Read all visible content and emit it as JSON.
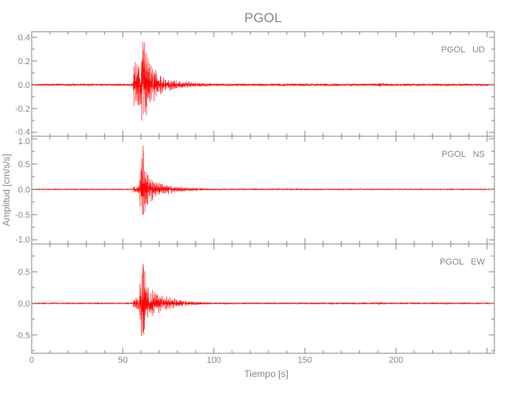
{
  "chart_data": {
    "type": "line",
    "title": "PGOL",
    "xlabel": "Tiempo [s]",
    "ylabel": "Amplitud [cm/s/s]",
    "xlim": [
      0,
      254
    ],
    "x_ticks": [
      0,
      50,
      100,
      150,
      200
    ],
    "x_tick_labels": [
      "0",
      "50",
      "100",
      "150",
      "200"
    ],
    "grid": false,
    "line_color": "#ff0000",
    "axis_color": "#888888",
    "panels": [
      {
        "label": "PGOL   UD",
        "ylim": [
          -0.433,
          0.447
        ],
        "y_ticks": [
          -0.4,
          -0.2,
          0.0,
          0.2,
          0.4
        ],
        "y_tick_labels": [
          "-0.4",
          "-0.2",
          "0.0",
          "0.2",
          "0.4"
        ],
        "y_minor_step": 0.1,
        "noise": 0.01,
        "envelope": [
          [
            0,
            0.01
          ],
          [
            55.5,
            0.01
          ],
          [
            56,
            0.22
          ],
          [
            58,
            0.2
          ],
          [
            60,
            0.3
          ],
          [
            61,
            0.43
          ],
          [
            62,
            0.4
          ],
          [
            64,
            0.25
          ],
          [
            67,
            0.15
          ],
          [
            72,
            0.07
          ],
          [
            80,
            0.04
          ],
          [
            90,
            0.02
          ],
          [
            100,
            0.012
          ],
          [
            188,
            0.012
          ],
          [
            191,
            0.02
          ],
          [
            195,
            0.012
          ],
          [
            254,
            0.01
          ]
        ]
      },
      {
        "label": "PGOL   NS",
        "ylim": [
          -1.08,
          1.05
        ],
        "y_ticks": [
          -1.0,
          -0.5,
          0.0,
          0.5,
          1.0
        ],
        "y_tick_labels": [
          "-1.0",
          "-0.5",
          "0.0",
          "0.5",
          "1.0"
        ],
        "y_minor_step": 0.25,
        "noise": 0.01,
        "envelope": [
          [
            0,
            0.01
          ],
          [
            55.5,
            0.01
          ],
          [
            56,
            0.08
          ],
          [
            59,
            0.1
          ],
          [
            60,
            0.6
          ],
          [
            61,
            1.05
          ],
          [
            62,
            0.6
          ],
          [
            64,
            0.35
          ],
          [
            67,
            0.2
          ],
          [
            72,
            0.12
          ],
          [
            80,
            0.06
          ],
          [
            90,
            0.03
          ],
          [
            100,
            0.015
          ],
          [
            254,
            0.01
          ]
        ]
      },
      {
        "label": "PGOL   EW",
        "ylim": [
          -0.79,
          0.94
        ],
        "y_ticks": [
          -0.5,
          0.0,
          0.5
        ],
        "y_tick_labels": [
          "-0.5",
          "0.0",
          "0.5"
        ],
        "y_minor_step": 0.25,
        "noise": 0.012,
        "envelope": [
          [
            0,
            0.012
          ],
          [
            55.5,
            0.012
          ],
          [
            56,
            0.08
          ],
          [
            59,
            0.12
          ],
          [
            60,
            0.5
          ],
          [
            61,
            0.85
          ],
          [
            62,
            0.55
          ],
          [
            64,
            0.3
          ],
          [
            67,
            0.2
          ],
          [
            72,
            0.13
          ],
          [
            80,
            0.07
          ],
          [
            90,
            0.03
          ],
          [
            100,
            0.015
          ],
          [
            189,
            0.015
          ],
          [
            191,
            0.025
          ],
          [
            193,
            0.015
          ],
          [
            254,
            0.012
          ]
        ]
      }
    ]
  }
}
